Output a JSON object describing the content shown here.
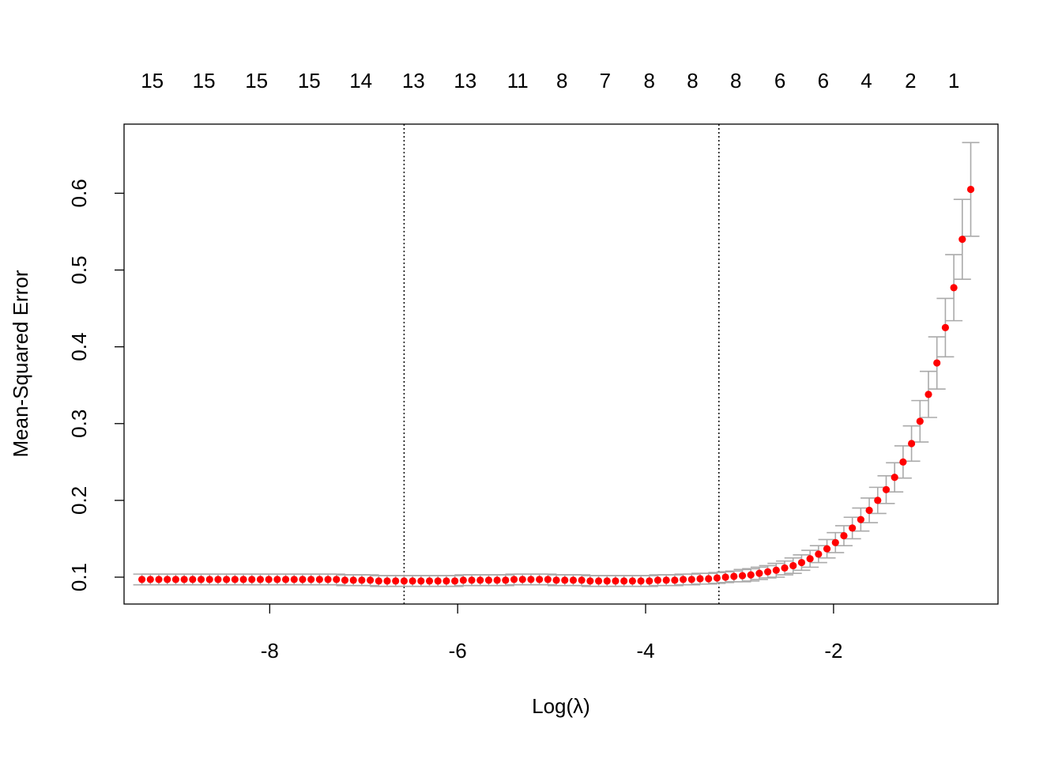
{
  "chart_data": {
    "type": "scatter",
    "title": "",
    "xlabel": "Log(λ)",
    "ylabel": "Mean-Squared Error",
    "xlim": [
      -9.55,
      -0.25
    ],
    "ylim": [
      0.065,
      0.69
    ],
    "xticks": [
      -8,
      -6,
      -4,
      -2
    ],
    "xtick_labels": [
      "-8",
      "-6",
      "-4",
      "-2"
    ],
    "yticks": [
      0.1,
      0.2,
      0.3,
      0.4,
      0.5,
      0.6
    ],
    "ytick_labels": [
      "0.1",
      "0.2",
      "0.3",
      "0.4",
      "0.5",
      "0.6"
    ],
    "top_axis": {
      "x": [
        -9.25,
        -8.7,
        -8.14,
        -7.58,
        -7.03,
        -6.47,
        -5.92,
        -5.36,
        -4.89,
        -4.43,
        -3.96,
        -3.5,
        -3.04,
        -2.57,
        -2.11,
        -1.65,
        -1.18,
        -0.72
      ],
      "labels": [
        "15",
        "15",
        "15",
        "15",
        "14",
        "13",
        "13",
        "11",
        "8",
        "7",
        "8",
        "8",
        "8",
        "6",
        "6",
        "4",
        "2",
        "1"
      ]
    },
    "vlines": [
      -6.57,
      -3.22
    ],
    "grid": false,
    "point_color": "#ff0000",
    "errorbar_color": "#aaaaaa",
    "series": [
      {
        "x": [
          -9.36,
          -9.27,
          -9.18,
          -9.09,
          -9.0,
          -8.91,
          -8.82,
          -8.73,
          -8.64,
          -8.55,
          -8.46,
          -8.37,
          -8.28,
          -8.19,
          -8.1,
          -8.01,
          -7.92,
          -7.83,
          -7.74,
          -7.65,
          -7.56,
          -7.47,
          -7.38,
          -7.29,
          -7.2,
          -7.11,
          -7.02,
          -6.93,
          -6.84,
          -6.75,
          -6.66,
          -6.57,
          -6.48,
          -6.39,
          -6.3,
          -6.21,
          -6.12,
          -6.03,
          -5.94,
          -5.85,
          -5.76,
          -5.67,
          -5.58,
          -5.49,
          -5.4,
          -5.31,
          -5.22,
          -5.13,
          -5.04,
          -4.95,
          -4.86,
          -4.77,
          -4.68,
          -4.59,
          -4.5,
          -4.41,
          -4.32,
          -4.23,
          -4.14,
          -4.05,
          -3.96,
          -3.87,
          -3.78,
          -3.69,
          -3.6,
          -3.51,
          -3.42,
          -3.33,
          -3.24,
          -3.15,
          -3.06,
          -2.97,
          -2.88,
          -2.79,
          -2.7,
          -2.61,
          -2.52,
          -2.43,
          -2.34,
          -2.25,
          -2.16,
          -2.07,
          -1.98,
          -1.89,
          -1.8,
          -1.71,
          -1.62,
          -1.53,
          -1.44,
          -1.35,
          -1.26,
          -1.17,
          -1.08,
          -0.99,
          -0.9,
          -0.81,
          -0.72,
          -0.63,
          -0.54
        ],
        "y": [
          0.097,
          0.097,
          0.097,
          0.097,
          0.097,
          0.097,
          0.097,
          0.097,
          0.097,
          0.097,
          0.097,
          0.097,
          0.097,
          0.097,
          0.097,
          0.097,
          0.097,
          0.097,
          0.097,
          0.097,
          0.097,
          0.097,
          0.097,
          0.097,
          0.096,
          0.096,
          0.096,
          0.096,
          0.095,
          0.095,
          0.095,
          0.095,
          0.095,
          0.095,
          0.095,
          0.095,
          0.095,
          0.095,
          0.096,
          0.096,
          0.096,
          0.096,
          0.096,
          0.096,
          0.097,
          0.097,
          0.097,
          0.097,
          0.097,
          0.096,
          0.096,
          0.096,
          0.096,
          0.095,
          0.095,
          0.095,
          0.095,
          0.095,
          0.095,
          0.095,
          0.095,
          0.096,
          0.096,
          0.096,
          0.097,
          0.097,
          0.098,
          0.098,
          0.099,
          0.1,
          0.101,
          0.102,
          0.103,
          0.105,
          0.107,
          0.109,
          0.112,
          0.115,
          0.119,
          0.124,
          0.13,
          0.137,
          0.145,
          0.154,
          0.164,
          0.175,
          0.187,
          0.2,
          0.214,
          0.23,
          0.25,
          0.274,
          0.303,
          0.338,
          0.379,
          0.425,
          0.477,
          0.54,
          0.605
        ],
        "se": [
          0.007,
          0.007,
          0.007,
          0.007,
          0.007,
          0.007,
          0.007,
          0.007,
          0.007,
          0.007,
          0.007,
          0.007,
          0.007,
          0.007,
          0.007,
          0.007,
          0.007,
          0.007,
          0.007,
          0.007,
          0.007,
          0.007,
          0.007,
          0.007,
          0.007,
          0.007,
          0.007,
          0.007,
          0.007,
          0.007,
          0.007,
          0.007,
          0.007,
          0.007,
          0.007,
          0.007,
          0.007,
          0.007,
          0.007,
          0.007,
          0.007,
          0.007,
          0.007,
          0.007,
          0.007,
          0.007,
          0.007,
          0.007,
          0.007,
          0.007,
          0.007,
          0.007,
          0.007,
          0.007,
          0.007,
          0.007,
          0.007,
          0.007,
          0.007,
          0.007,
          0.007,
          0.007,
          0.007,
          0.007,
          0.007,
          0.007,
          0.007,
          0.007,
          0.007,
          0.007,
          0.007,
          0.008,
          0.008,
          0.008,
          0.008,
          0.009,
          0.009,
          0.01,
          0.01,
          0.011,
          0.011,
          0.012,
          0.013,
          0.013,
          0.014,
          0.015,
          0.016,
          0.017,
          0.018,
          0.019,
          0.021,
          0.023,
          0.027,
          0.03,
          0.034,
          0.038,
          0.043,
          0.052,
          0.061
        ]
      }
    ]
  }
}
